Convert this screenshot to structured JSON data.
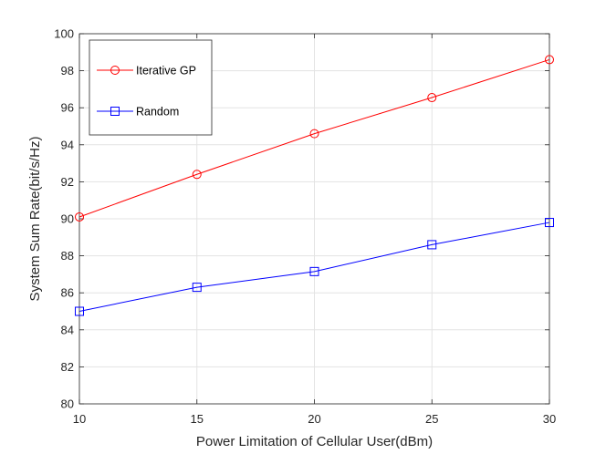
{
  "chart_data": {
    "type": "line",
    "title": "",
    "xlabel": "Power Limitation of Cellular User(dBm)",
    "ylabel": "System Sum Rate(bit/s/Hz)",
    "x": [
      10,
      15,
      20,
      25,
      30
    ],
    "xlim": [
      10,
      30
    ],
    "ylim": [
      80,
      100
    ],
    "xticks": [
      10,
      15,
      20,
      25,
      30
    ],
    "yticks": [
      80,
      82,
      84,
      86,
      88,
      90,
      92,
      94,
      96,
      98,
      100
    ],
    "grid": true,
    "legend_position": "top-left",
    "series": [
      {
        "name": "Iterative GP",
        "values": [
          90.1,
          92.4,
          94.6,
          96.55,
          98.6
        ],
        "color": "#ff0000",
        "marker": "circle"
      },
      {
        "name": "Random",
        "values": [
          85.0,
          86.3,
          87.15,
          88.6,
          89.8
        ],
        "color": "#0000ff",
        "marker": "square"
      }
    ]
  }
}
